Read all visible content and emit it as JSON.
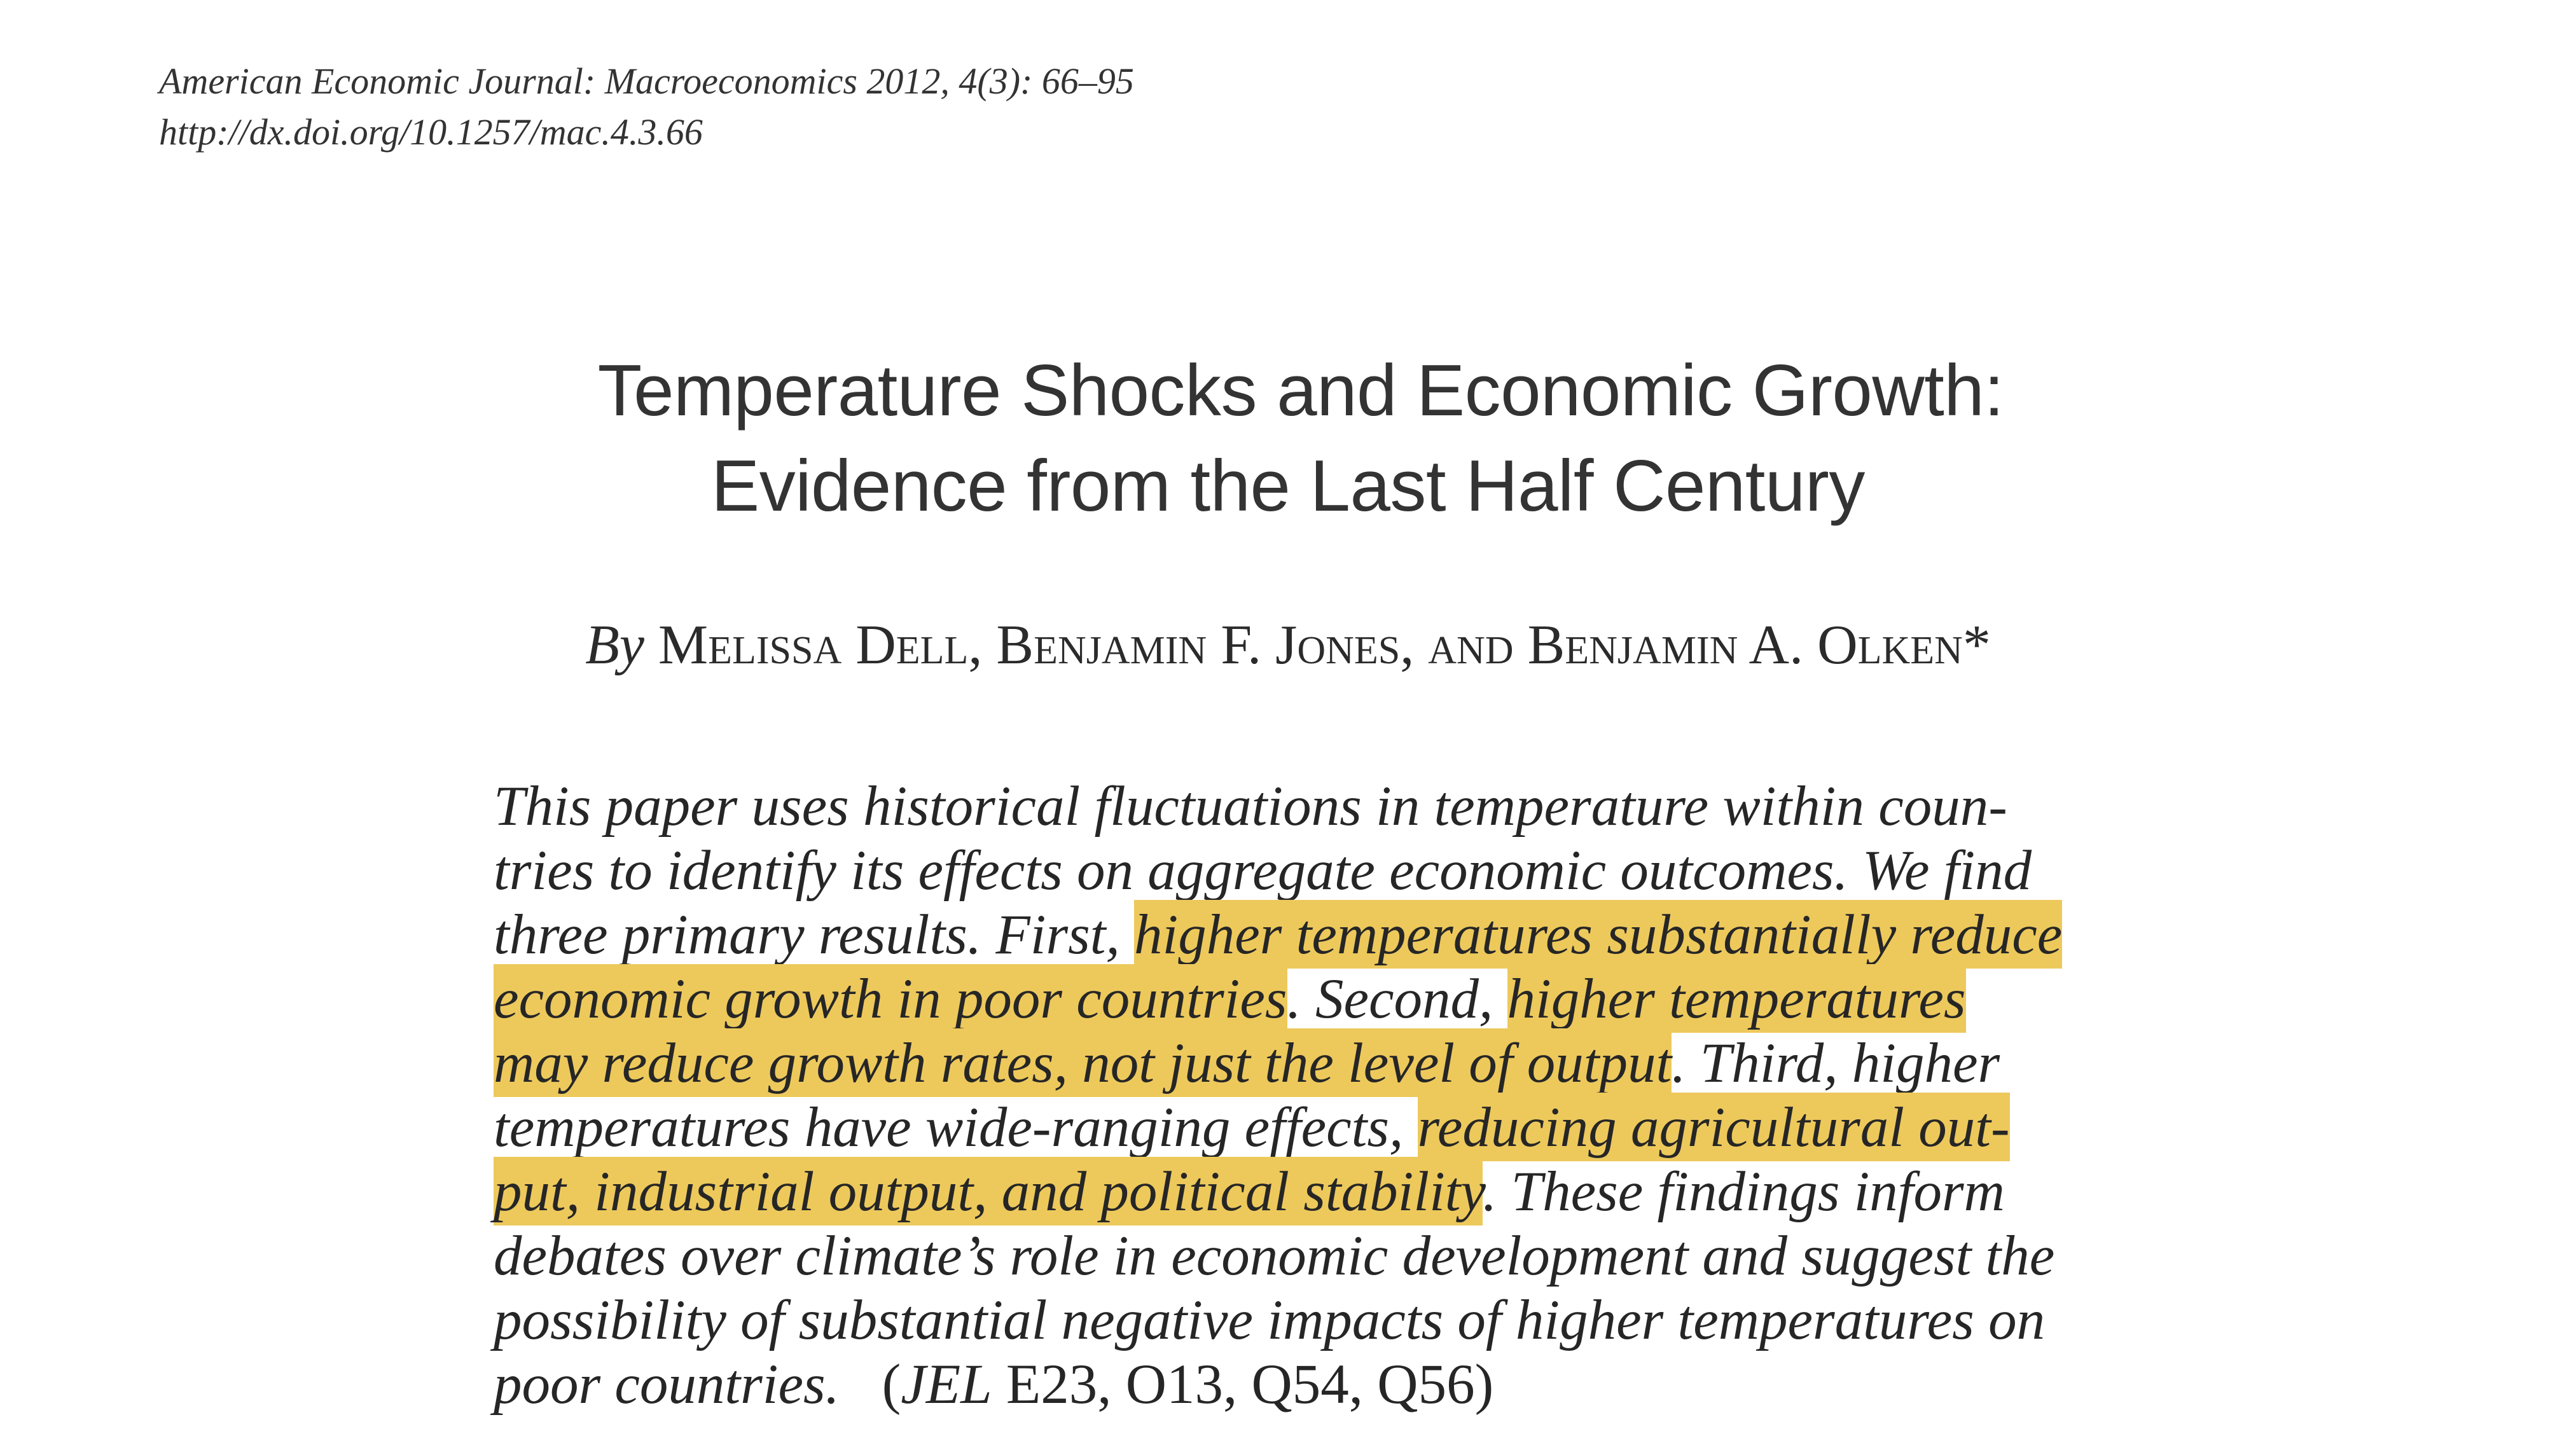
{
  "journal": {
    "citation": "American Economic Journal: Macroeconomics 2012, 4(3): 66–95",
    "doi": "http://dx.doi.org/10.1257/mac.4.3.66"
  },
  "title": {
    "line1": "Temperature Shocks and Economic Growth:",
    "line2": "Evidence from the Last Half Century"
  },
  "byline": {
    "by": "By",
    "authors": "Melissa Dell, Benjamin F. Jones, and Benjamin A. Olken*"
  },
  "abstract": {
    "lines": [
      [
        {
          "t": "This paper uses historical fluctuations in temperature within coun-",
          "h": false
        }
      ],
      [
        {
          "t": "tries to identify its effects on aggregate economic outcomes. We find",
          "h": false
        }
      ],
      [
        {
          "t": "three primary results. First, ",
          "h": false
        },
        {
          "t": "higher temperatures substantially reduce",
          "h": true
        }
      ],
      [
        {
          "t": "economic growth in poor countries",
          "h": true
        },
        {
          "t": ". Second, ",
          "h": false
        },
        {
          "t": "higher temperatures",
          "h": true
        }
      ],
      [
        {
          "t": "may reduce growth rates, not just the level of output",
          "h": true
        },
        {
          "t": ". Third, higher",
          "h": false
        }
      ],
      [
        {
          "t": "temperatures have wide-ranging effects, ",
          "h": false
        },
        {
          "t": "reducing agricultural out-",
          "h": true
        }
      ],
      [
        {
          "t": "put, industrial output, and political stability",
          "h": true
        },
        {
          "t": ". These findings inform",
          "h": false
        }
      ],
      [
        {
          "t": "debates over climate’s role in economic development and suggest the",
          "h": false
        }
      ],
      [
        {
          "t": "possibility of substantial negative impacts of higher temperatures on",
          "h": false
        }
      ]
    ],
    "last_line_text": "poor countries.",
    "jel_open": "(",
    "jel_label": "JEL",
    "jel_codes": " E23, O13, Q54, Q56",
    "jel_close": ")"
  },
  "colors": {
    "highlight": "#edc95c",
    "highlight_edge": "#dda333",
    "text": "#262626"
  }
}
